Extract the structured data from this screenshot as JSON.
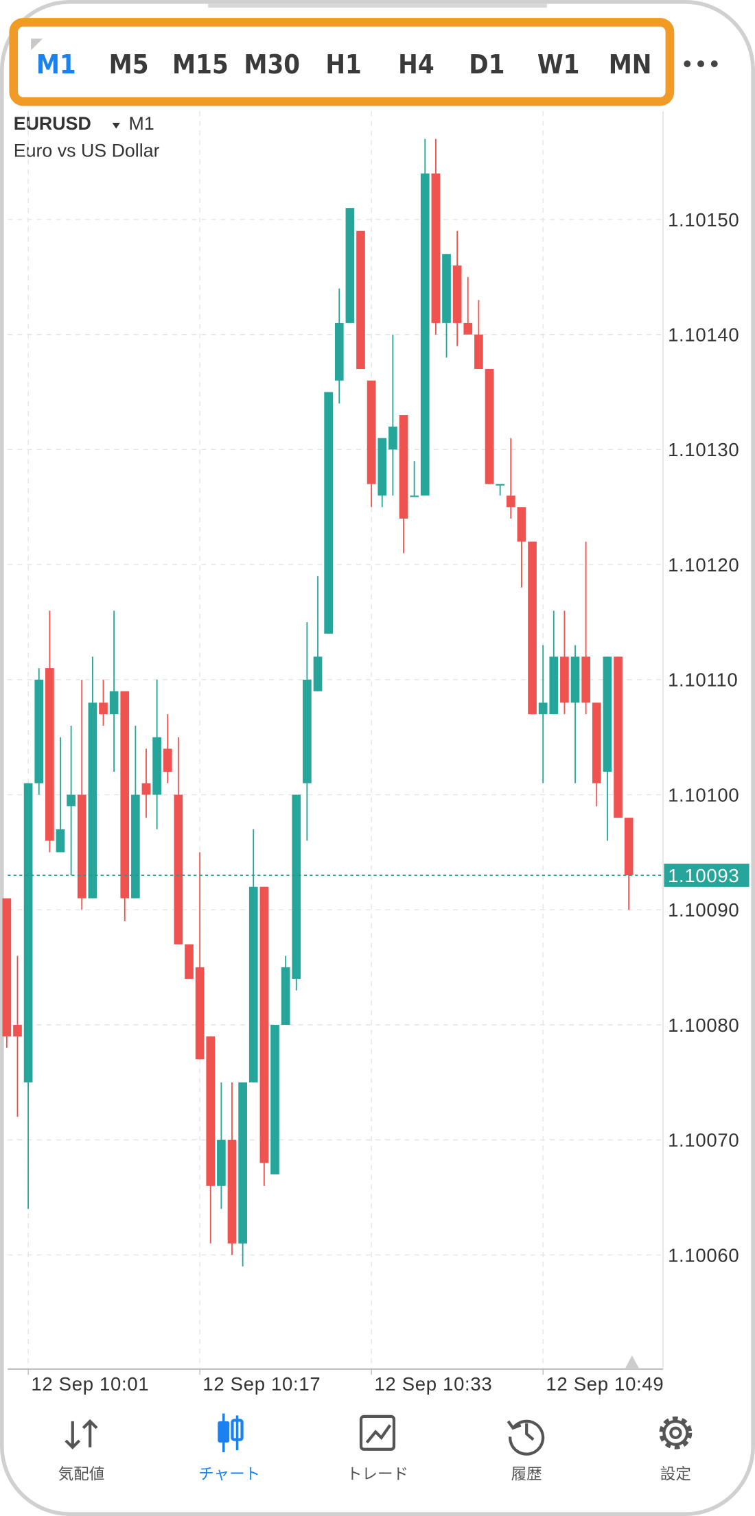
{
  "timeframes": [
    "M1",
    "M5",
    "M15",
    "M30",
    "H1",
    "H4",
    "D1",
    "W1",
    "MN"
  ],
  "selected_timeframe": 0,
  "symbol": "EURUSD",
  "period": "M1",
  "description": "Euro vs US Dollar",
  "nav": [
    "気配値",
    "チャート",
    "トレード",
    "履歴",
    "設定"
  ],
  "selected_nav": 1,
  "chart_data": {
    "type": "candlestick",
    "up_color": "#26a69a",
    "down_color": "#ef5350",
    "ylim": [
      1.1005,
      1.1016
    ],
    "yticks": [
      {
        "value": 1.1006,
        "label": "1.10060"
      },
      {
        "value": 1.1007,
        "label": "1.10070"
      },
      {
        "value": 1.1008,
        "label": "1.10080"
      },
      {
        "value": 1.1009,
        "label": "1.10090"
      },
      {
        "value": 1.101,
        "label": "1.10100"
      },
      {
        "value": 1.1011,
        "label": "1.10110"
      },
      {
        "value": 1.1012,
        "label": "1.10120"
      },
      {
        "value": 1.1013,
        "label": "1.10130"
      },
      {
        "value": 1.1014,
        "label": "1.10140"
      },
      {
        "value": 1.1015,
        "label": "1.10150"
      }
    ],
    "xticks": [
      {
        "value": 2,
        "label": "12 Sep 10:01"
      },
      {
        "value": 18,
        "label": "12 Sep 10:17"
      },
      {
        "value": 34,
        "label": "12 Sep 10:33"
      },
      {
        "value": 50,
        "label": "12 Sep 10:49"
      }
    ],
    "grid": true,
    "last_price": 1.10093,
    "open": [
      1.10091,
      1.1008,
      1.10075,
      1.10101,
      1.10111,
      1.10095,
      1.10099,
      1.101,
      1.10091,
      1.10108,
      1.10107,
      1.10109,
      1.10091,
      1.10101,
      1.101,
      1.10104,
      1.101,
      1.10087,
      1.10085,
      1.10079,
      1.10066,
      1.1007,
      1.10061,
      1.10075,
      1.10092,
      1.10067,
      1.1008,
      1.10084,
      1.10101,
      1.10109,
      1.10114,
      1.10136,
      1.10141,
      1.10149,
      1.10136,
      1.10126,
      1.1013,
      1.10133,
      1.10126,
      1.10126,
      1.10154,
      1.10141,
      1.10146,
      1.10141,
      1.1014,
      1.10137,
      1.10127,
      1.10126,
      1.10125,
      1.10122,
      1.10107,
      1.10107,
      1.10112,
      1.10108,
      1.10112,
      1.10108,
      1.10102,
      1.10112,
      1.10098
    ],
    "high": [
      1.10091,
      1.10086,
      1.10101,
      1.10111,
      1.10116,
      1.10105,
      1.10106,
      1.1011,
      1.10112,
      1.1011,
      1.10116,
      1.10109,
      1.10106,
      1.10104,
      1.1011,
      1.10107,
      1.10105,
      1.10087,
      1.10095,
      1.10079,
      1.10075,
      1.10075,
      1.10075,
      1.10097,
      1.10092,
      1.1008,
      1.10086,
      1.101,
      1.10115,
      1.10119,
      1.10135,
      1.10144,
      1.10151,
      1.10149,
      1.10136,
      1.10131,
      1.1014,
      1.10133,
      1.10129,
      1.10157,
      1.10157,
      1.10147,
      1.10149,
      1.10145,
      1.10143,
      1.10137,
      1.10127,
      1.10131,
      1.10125,
      1.10122,
      1.10113,
      1.10116,
      1.10116,
      1.10113,
      1.10122,
      1.10108,
      1.10112,
      1.10112,
      1.10098
    ],
    "low": [
      1.10078,
      1.10072,
      1.10064,
      1.101,
      1.10095,
      1.10095,
      1.10093,
      1.1009,
      1.10091,
      1.10106,
      1.10102,
      1.10089,
      1.10091,
      1.10098,
      1.10097,
      1.10101,
      1.10087,
      1.10084,
      1.10077,
      1.10061,
      1.10064,
      1.1006,
      1.10059,
      1.10075,
      1.10066,
      1.10067,
      1.1008,
      1.10083,
      1.10096,
      1.10109,
      1.10114,
      1.10134,
      1.10141,
      1.10137,
      1.10125,
      1.10125,
      1.10126,
      1.10121,
      1.10126,
      1.10126,
      1.1014,
      1.10138,
      1.10139,
      1.1014,
      1.10137,
      1.10127,
      1.10126,
      1.10124,
      1.10118,
      1.10107,
      1.10101,
      1.10107,
      1.10107,
      1.10101,
      1.10107,
      1.10099,
      1.10096,
      1.10098,
      1.1009
    ],
    "close": [
      1.10079,
      1.10079,
      1.10101,
      1.1011,
      1.10096,
      1.10097,
      1.101,
      1.10091,
      1.10108,
      1.10107,
      1.10109,
      1.10091,
      1.101,
      1.101,
      1.10105,
      1.10102,
      1.10087,
      1.10084,
      1.10077,
      1.10066,
      1.1007,
      1.10061,
      1.10075,
      1.10092,
      1.10068,
      1.1008,
      1.10085,
      1.101,
      1.1011,
      1.10112,
      1.10135,
      1.10141,
      1.10151,
      1.10137,
      1.10127,
      1.10131,
      1.10132,
      1.10124,
      1.10126,
      1.10154,
      1.10141,
      1.10147,
      1.10141,
      1.1014,
      1.10137,
      1.10127,
      1.10127,
      1.10125,
      1.10122,
      1.10107,
      1.10108,
      1.10112,
      1.10108,
      1.10112,
      1.10108,
      1.10101,
      1.10112,
      1.10098,
      1.10093
    ]
  }
}
